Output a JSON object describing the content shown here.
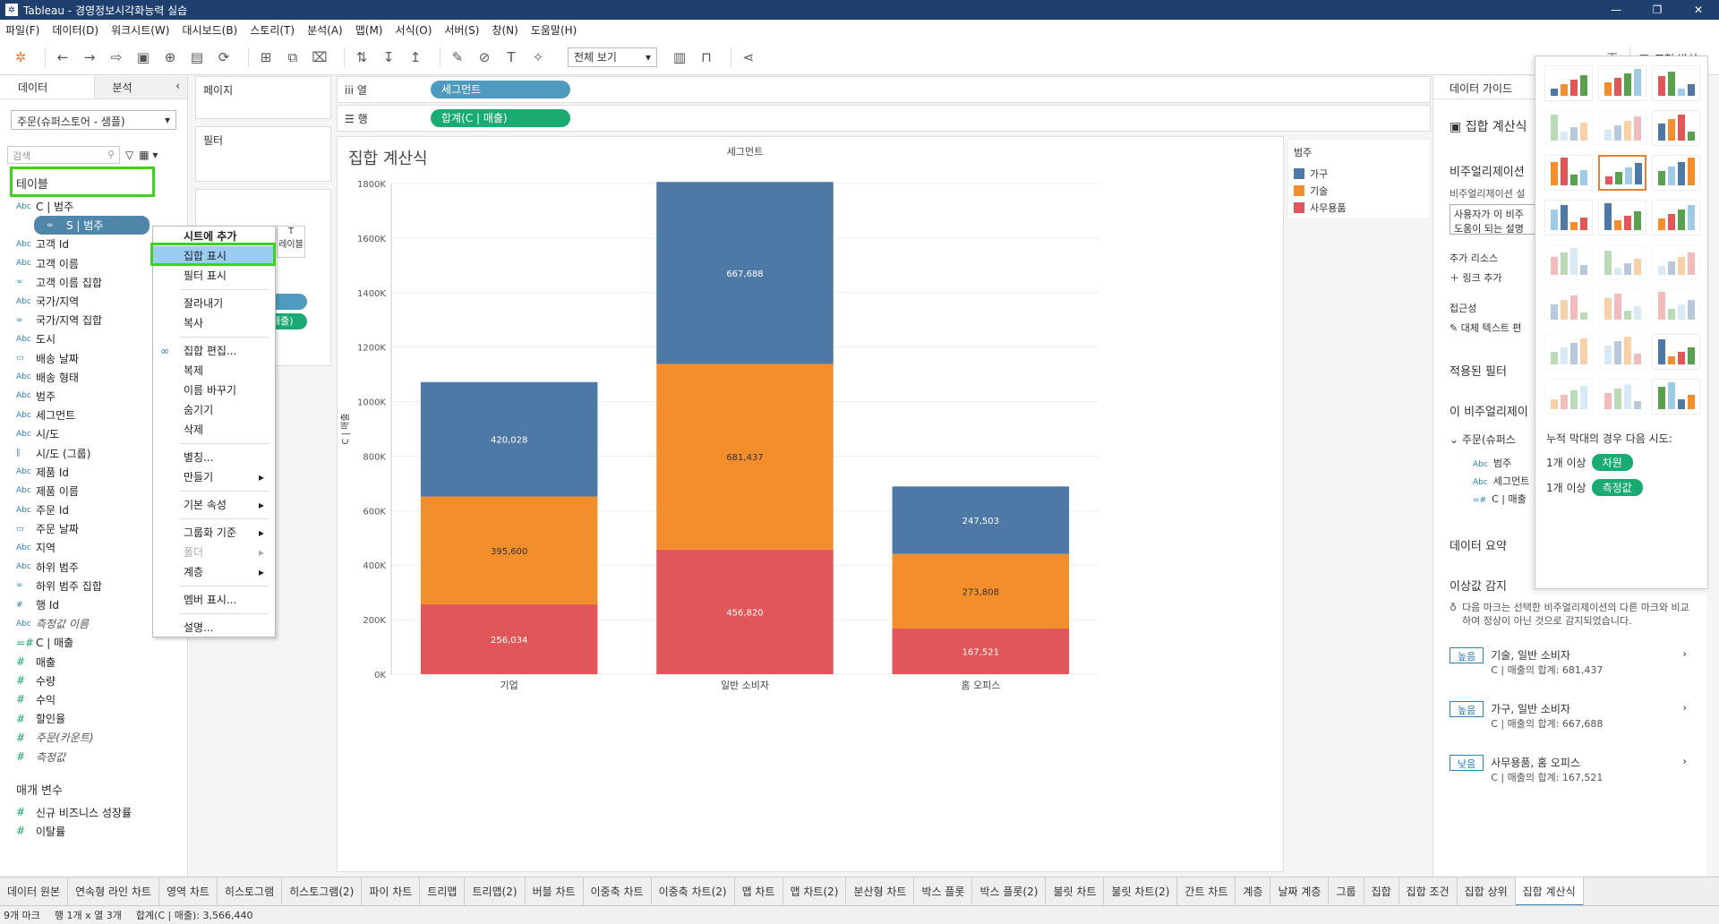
{
  "window": {
    "title": "Tableau - 경영정보시각화능력 실습",
    "min": "—",
    "max": "❐",
    "close": "✕"
  },
  "menu": [
    "파일(F)",
    "데이터(D)",
    "워크시트(W)",
    "대시보드(B)",
    "스토리(T)",
    "분석(A)",
    "맵(M)",
    "서식(O)",
    "서버(S)",
    "창(N)",
    "도움말(H)"
  ],
  "toolbar": {
    "view_select": "전체 보기",
    "show_me": "표현 방식"
  },
  "data_pane": {
    "tab_data": "데이터",
    "tab_analysis": "분석",
    "datasource": "주문(슈퍼스토어 - 샘플)",
    "search_placeholder": "검색",
    "tables_header": "테이블",
    "fields": [
      {
        "icon": "Abc",
        "name": "C | 범주"
      },
      {
        "icon": "∞",
        "name": "S | 범주",
        "selected": true
      },
      {
        "icon": "Abc",
        "name": "고객 Id"
      },
      {
        "icon": "Abc",
        "name": "고객 이름"
      },
      {
        "icon": "∞",
        "name": "고객 이름 집합"
      },
      {
        "icon": "Abc",
        "name": "국가/지역"
      },
      {
        "icon": "∞",
        "name": "국가/지역 집합"
      },
      {
        "icon": "Abc",
        "name": "도시"
      },
      {
        "icon": "▭",
        "name": "배송 날짜"
      },
      {
        "icon": "Abc",
        "name": "배송 형태"
      },
      {
        "icon": "Abc",
        "name": "범주"
      },
      {
        "icon": "Abc",
        "name": "세그먼트"
      },
      {
        "icon": "Abc",
        "name": "시/도"
      },
      {
        "icon": "∥",
        "name": "시/도 (그룹)"
      },
      {
        "icon": "Abc",
        "name": "제품 Id"
      },
      {
        "icon": "Abc",
        "name": "제품 이름"
      },
      {
        "icon": "Abc",
        "name": "주문 Id"
      },
      {
        "icon": "▭",
        "name": "주문 날짜"
      },
      {
        "icon": "Abc",
        "name": "지역"
      },
      {
        "icon": "Abc",
        "name": "하위 범주"
      },
      {
        "icon": "∞",
        "name": "하위 범주 집합"
      },
      {
        "icon": "#",
        "name": "행 Id"
      },
      {
        "icon": "Abc",
        "name": "측정값 이름",
        "italic": true
      },
      {
        "icon": "=#",
        "name": "C | 매출",
        "measure": true
      },
      {
        "icon": "#",
        "name": "매출",
        "measure": true
      },
      {
        "icon": "#",
        "name": "수량",
        "measure": true
      },
      {
        "icon": "#",
        "name": "수익",
        "measure": true
      },
      {
        "icon": "#",
        "name": "할인율",
        "measure": true
      },
      {
        "icon": "#",
        "name": "주문(카운트)",
        "measure": true,
        "italic": true
      },
      {
        "icon": "#",
        "name": "측정값",
        "measure": true,
        "italic": true
      }
    ],
    "params_header": "매개 변수",
    "params": [
      "신규 비즈니스 성장률",
      "이탈률"
    ]
  },
  "shelves": {
    "pages": "페이지",
    "filters": "필터",
    "marks_label": "레이블",
    "columns_label": "열",
    "rows_label": "행",
    "columns_pill": "세그먼트",
    "rows_pill": "합계(C | 매출)",
    "marks_pill2": "매출)"
  },
  "context_menu": {
    "items": [
      {
        "label": "시트에 추가",
        "bold": true
      },
      {
        "label": "집합 표시",
        "highlight": true
      },
      {
        "label": "필터 표시"
      },
      {
        "sep": true
      },
      {
        "label": "잘라내기"
      },
      {
        "label": "복사"
      },
      {
        "sep": true
      },
      {
        "label": "집합 편집...",
        "icon": true
      },
      {
        "label": "복제"
      },
      {
        "label": "이름 바꾸기"
      },
      {
        "label": "숨기기"
      },
      {
        "label": "삭제"
      },
      {
        "sep": true
      },
      {
        "label": "별칭..."
      },
      {
        "label": "만들기",
        "sub": true
      },
      {
        "sep": true
      },
      {
        "label": "기본 속성",
        "sub": true
      },
      {
        "sep": true
      },
      {
        "label": "그룹화 기준",
        "sub": true
      },
      {
        "label": "폴더",
        "sub": true,
        "disabled": true
      },
      {
        "label": "계층",
        "sub": true
      },
      {
        "sep": true
      },
      {
        "label": "멤버 표시..."
      },
      {
        "sep": true
      },
      {
        "label": "설명..."
      }
    ]
  },
  "chart": {
    "title": "집합 계산식"
  },
  "chart_data": {
    "type": "bar",
    "stacked": true,
    "title": "집합 계산식",
    "xlabel": "세그먼트",
    "ylabel": "C | 매출",
    "categories": [
      "기업",
      "일반 소비자",
      "홈 오피스"
    ],
    "series": [
      {
        "name": "사무용품",
        "color": "#e15759",
        "values": [
          256034,
          456820,
          167521
        ],
        "labels": [
          "256,034",
          "456,820",
          "167,521"
        ]
      },
      {
        "name": "기술",
        "color": "#f28e2b",
        "values": [
          395600,
          681437,
          273808
        ],
        "labels": [
          "395,600",
          "681,437",
          "273,808"
        ]
      },
      {
        "name": "가구",
        "color": "#4e79a7",
        "values": [
          420028,
          667688,
          247503
        ],
        "labels": [
          "420,028",
          "667,688",
          "247,503"
        ]
      }
    ],
    "ylim": [
      0,
      1800000
    ],
    "yticks": [
      "0K",
      "200K",
      "400K",
      "600K",
      "800K",
      "1000K",
      "1200K",
      "1400K",
      "1600K",
      "1800K"
    ],
    "ytick_values": [
      0,
      200000,
      400000,
      600000,
      800000,
      1000000,
      1200000,
      1400000,
      1600000,
      1800000
    ],
    "label_colors": [
      "#ffffff",
      "#333333",
      "#ffffff"
    ],
    "grid": true
  },
  "legend": {
    "title": "범주",
    "items": [
      {
        "label": "가구",
        "color": "#4e79a7"
      },
      {
        "label": "기술",
        "color": "#f28e2b"
      },
      {
        "label": "사무용품",
        "color": "#e15759"
      }
    ]
  },
  "right_pane": {
    "header": "데이터 가이드",
    "section_title": "집합 계산식",
    "viz_title": "비주얼리제이션",
    "viz_desc_label": "비주얼리제이션 설",
    "viz_desc_value1": "사용자가 이 비주",
    "viz_desc_value2": "도움이 되는 설명",
    "extra_resources": "추가 리소스",
    "add_link": "링크 추가",
    "accessibility": "접근성",
    "alt_text": "대체 텍스트 편",
    "applied_filters": "적용된 필터",
    "this_viz": "이 비주얼리제이",
    "source_name": "주문(슈퍼스",
    "source_fields": [
      "범주",
      "세그먼트",
      "C | 매출"
    ],
    "data_summary": "데이터 요약",
    "outlier_title": "이상값 감지",
    "outlier_desc": "다음 마크는 선택한 비주얼리제이션의 다른 마크와 비교하여 정상이 아닌 것으로 감지되었습니다.",
    "outliers": [
      {
        "badge": "높음",
        "title": "기술, 일반 소비자",
        "detail": "C | 매출의 합계: 681,437"
      },
      {
        "badge": "높음",
        "title": "가구, 일반 소비자",
        "detail": "C | 매출의 합계: 667,688"
      },
      {
        "badge": "낮음",
        "title": "사무용품, 홈 오피스",
        "detail": "C | 매출의 합계: 167,521"
      }
    ]
  },
  "show_me": {
    "hint_title": "누적 막대의 경우 다음 시도:",
    "hint_row1_prefix": "1개 이상",
    "hint_row1_pill": "차원",
    "hint_row2_prefix": "1개 이상",
    "hint_row2_pill": "측정값"
  },
  "sheet_tabs": [
    "데이터 원본",
    "연속형 라인 차트",
    "영역 차트",
    "히스토그램",
    "히스토그램(2)",
    "파이 차트",
    "트리맵",
    "트리맵(2)",
    "버블 차트",
    "이중축 차트",
    "이중축 차트(2)",
    "맵 차트",
    "맵 차트(2)",
    "분산형 차트",
    "박스 플롯",
    "박스 플롯(2)",
    "불릿 차트",
    "불릿 차트(2)",
    "간트 차트",
    "계층",
    "날짜 계층",
    "그룹",
    "집합",
    "집합 조건",
    "집합 상위",
    "집합 계산식"
  ],
  "active_sheet": "집합 계산식",
  "status": {
    "marks": "9개 마크",
    "rows_cols": "행 1개 x 열 3개",
    "sum": "합계(C | 매출): 3,566,440"
  }
}
